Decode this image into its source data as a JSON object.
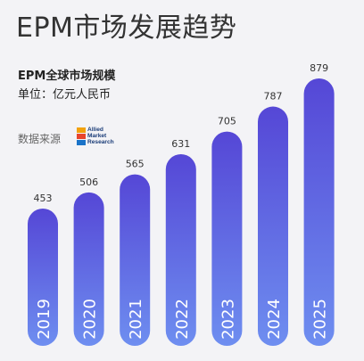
{
  "header": {
    "title": "EPM市场发展趋势",
    "subtitle": "EPM全球市场规模",
    "unit": "单位：亿元人民币"
  },
  "source": {
    "label": "数据来源",
    "logo_text": "Allied\nMarket\nResearch"
  },
  "colors": {
    "bar_top": "#5547d6",
    "bar_bottom": "#6e8ef0",
    "label": "#333333",
    "year": "#ffffff"
  },
  "chart_data": {
    "type": "bar",
    "title": "EPM全球市场规模",
    "ylabel": "单位：亿元人民币",
    "categories": [
      "2019",
      "2020",
      "2021",
      "2022",
      "2023",
      "2024",
      "2025"
    ],
    "values": [
      453,
      506,
      565,
      631,
      705,
      787,
      879
    ],
    "grid": false,
    "legend": "none"
  }
}
